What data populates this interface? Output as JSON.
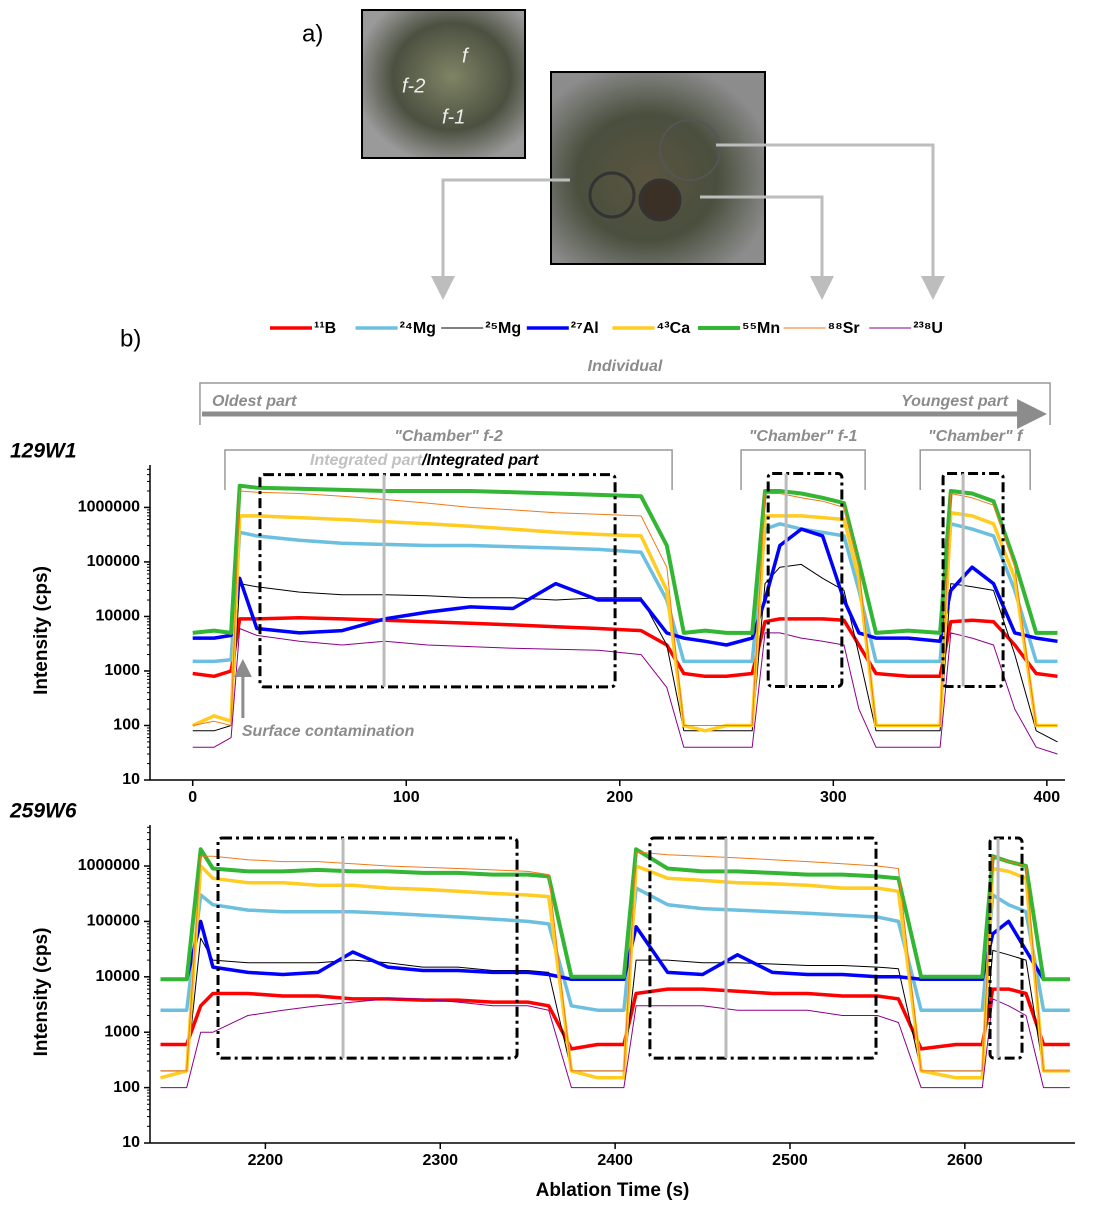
{
  "figure": {
    "panel_a": "a)",
    "panel_b": "b)",
    "photo_labels": [
      "f",
      "f-2",
      "f-1"
    ]
  },
  "chart_data": [
    {
      "type": "line",
      "label": "129W1",
      "ylabel": "Intensity (cps)",
      "log_y": true,
      "x": [
        0,
        10,
        18,
        22,
        30,
        50,
        70,
        90,
        110,
        130,
        150,
        170,
        190,
        210,
        222,
        230,
        240,
        250,
        262,
        268,
        275,
        285,
        295,
        305,
        312,
        320,
        335,
        350,
        355,
        365,
        375,
        385,
        395,
        405
      ],
      "xlim": [
        -20,
        408.5
      ],
      "xticks": [
        0,
        100,
        200,
        300,
        400
      ],
      "ylim": [
        10,
        6000000
      ],
      "yticks": [
        10,
        100,
        1000,
        10000,
        100000,
        1000000
      ],
      "series": [
        {
          "name": "¹¹B",
          "color": "#ff0000",
          "line_width": 3.5,
          "values": [
            900,
            800,
            1000,
            9000,
            9000,
            9500,
            9000,
            8500,
            8000,
            7500,
            7000,
            6500,
            6000,
            5500,
            3000,
            900,
            800,
            800,
            900,
            8000,
            9000,
            9000,
            9000,
            8500,
            3000,
            900,
            800,
            800,
            8000,
            8500,
            8000,
            3000,
            900,
            800
          ]
        },
        {
          "name": "²⁴Mg",
          "color": "#6bbfdf",
          "line_width": 3.5,
          "values": [
            1500,
            1500,
            1600,
            350000,
            300000,
            250000,
            220000,
            210000,
            200000,
            200000,
            190000,
            180000,
            170000,
            150000,
            20000,
            1500,
            1500,
            1500,
            1500,
            400000,
            500000,
            400000,
            350000,
            300000,
            30000,
            1500,
            1500,
            1500,
            500000,
            400000,
            300000,
            30000,
            1500,
            1500
          ]
        },
        {
          "name": "²⁵Mg",
          "color": "#000000",
          "line_width": 1,
          "values": [
            80,
            80,
            100,
            40000,
            35000,
            28000,
            25000,
            25000,
            24000,
            22000,
            22000,
            20000,
            22000,
            22000,
            3000,
            80,
            80,
            80,
            80,
            40000,
            80000,
            90000,
            50000,
            30000,
            2000,
            80,
            80,
            80,
            40000,
            35000,
            30000,
            2000,
            80,
            50
          ]
        },
        {
          "name": "²⁷Al",
          "color": "#0000ff",
          "line_width": 3.5,
          "values": [
            4000,
            4000,
            4500,
            50000,
            6000,
            5000,
            5500,
            9000,
            12000,
            15000,
            14000,
            40000,
            20000,
            20000,
            5000,
            4000,
            3500,
            3000,
            4000,
            20000,
            200000,
            400000,
            300000,
            20000,
            5000,
            4000,
            4000,
            3500,
            30000,
            80000,
            40000,
            5000,
            4000,
            3500
          ]
        },
        {
          "name": "⁴³Ca",
          "color": "#ffcc22",
          "line_width": 3.5,
          "values": [
            100,
            150,
            120,
            700000,
            700000,
            650000,
            600000,
            550000,
            500000,
            450000,
            400000,
            350000,
            320000,
            300000,
            30000,
            100,
            80,
            100,
            100,
            700000,
            700000,
            700000,
            650000,
            600000,
            50000,
            100,
            100,
            100,
            800000,
            700000,
            500000,
            50000,
            100,
            100
          ]
        },
        {
          "name": "⁵⁵Mn",
          "color": "#33b633",
          "line_width": 4,
          "values": [
            5000,
            5500,
            5000,
            2500000,
            2300000,
            2200000,
            2100000,
            2000000,
            2000000,
            2000000,
            1900000,
            1800000,
            1700000,
            1600000,
            200000,
            5000,
            5500,
            5000,
            5000,
            2000000,
            2000000,
            1800000,
            1500000,
            1200000,
            100000,
            5000,
            5500,
            5000,
            2000000,
            1800000,
            1300000,
            100000,
            5000,
            5000
          ]
        },
        {
          "name": "⁸⁸Sr",
          "color": "#f07a18",
          "line_width": 1,
          "values": [
            100,
            120,
            100,
            2000000,
            1900000,
            1800000,
            1600000,
            1400000,
            1200000,
            1000000,
            900000,
            800000,
            750000,
            700000,
            80000,
            100,
            100,
            100,
            100,
            1800000,
            1800000,
            1500000,
            1300000,
            1000000,
            80000,
            100,
            100,
            100,
            1800000,
            1500000,
            1100000,
            80000,
            100,
            100
          ]
        },
        {
          "name": "²³⁸U",
          "color": "#8b008b",
          "line_width": 1,
          "values": [
            40,
            40,
            60,
            6000,
            4500,
            3500,
            3000,
            3500,
            3000,
            2800,
            2600,
            2500,
            2400,
            2000,
            500,
            40,
            40,
            40,
            40,
            5000,
            5000,
            4000,
            3500,
            3000,
            200,
            40,
            40,
            40,
            5000,
            4000,
            3000,
            200,
            40,
            30
          ]
        }
      ],
      "windows": [
        {
          "x": [
            31.5,
            197.8
          ],
          "y": [
            510,
            4000000
          ],
          "marker": 89.6
        },
        {
          "x": [
            269.5,
            304
          ],
          "y": [
            520,
            4200000
          ],
          "marker": 277.9
        },
        {
          "x": [
            351.4,
            379.5
          ],
          "y": [
            520,
            4200000
          ],
          "marker": 360.8
        }
      ],
      "span": {
        "label": "Individual",
        "x": [
          3.4,
          401.5
        ],
        "start": "Oldest part",
        "end": "Youngest part"
      },
      "regions": [
        {
          "label": "\"Chamber\" f-2",
          "x": [
            15.1,
            224.5
          ]
        },
        {
          "label": "\"Chamber\" f-1",
          "x": [
            256.8,
            314.9
          ]
        },
        {
          "label": "\"Chamber\" f",
          "x": [
            340.7,
            392.2
          ]
        }
      ],
      "integrated_label": [
        "Integrated part",
        "/Integrated part"
      ],
      "callout": {
        "label": "Surface contamination",
        "x": 23.5
      }
    },
    {
      "type": "line",
      "label": "259W6",
      "ylabel": "Intensity (cps)",
      "xlabel": "Ablation Time (s)",
      "log_y": true,
      "x": [
        2140,
        2155,
        2163,
        2170,
        2190,
        2210,
        2230,
        2250,
        2270,
        2290,
        2310,
        2330,
        2350,
        2362,
        2375,
        2390,
        2405,
        2412,
        2430,
        2450,
        2470,
        2490,
        2510,
        2530,
        2550,
        2562,
        2575,
        2595,
        2610,
        2616,
        2625,
        2635,
        2645,
        2660
      ],
      "xlim": [
        2134,
        2663
      ],
      "xticks": [
        2200,
        2300,
        2400,
        2500,
        2600
      ],
      "ylim": [
        10,
        5500000
      ],
      "yticks": [
        10,
        100,
        1000,
        10000,
        100000,
        1000000
      ],
      "series": [
        {
          "color": "#ff0000",
          "line_width": 3.5,
          "values": [
            600,
            600,
            3000,
            5000,
            5000,
            4500,
            4500,
            4000,
            4000,
            3800,
            3800,
            3500,
            3500,
            3000,
            500,
            600,
            600,
            5000,
            6000,
            6000,
            5500,
            5000,
            5000,
            4500,
            4500,
            4000,
            500,
            600,
            600,
            6000,
            6000,
            5000,
            600,
            600
          ]
        },
        {
          "color": "#6bbfdf",
          "line_width": 3.5,
          "values": [
            2500,
            2500,
            300000,
            200000,
            160000,
            150000,
            150000,
            150000,
            140000,
            130000,
            120000,
            110000,
            100000,
            90000,
            3000,
            2500,
            2500,
            400000,
            200000,
            170000,
            160000,
            150000,
            140000,
            130000,
            120000,
            100000,
            2500,
            2500,
            2500,
            300000,
            200000,
            150000,
            2500,
            2500
          ]
        },
        {
          "color": "#000000",
          "line_width": 1,
          "values": [
            200,
            200,
            50000,
            20000,
            18000,
            18000,
            18000,
            20000,
            18000,
            15000,
            15000,
            13000,
            13000,
            12000,
            200,
            200,
            200,
            20000,
            20000,
            18000,
            18000,
            17000,
            16000,
            16000,
            15000,
            14000,
            200,
            200,
            200,
            30000,
            25000,
            20000,
            200,
            200
          ]
        },
        {
          "color": "#0000ff",
          "line_width": 3.5,
          "values": [
            9000,
            9000,
            100000,
            15000,
            12000,
            11000,
            12000,
            28000,
            15000,
            13000,
            13000,
            12000,
            12000,
            11000,
            9000,
            9000,
            9000,
            80000,
            12000,
            11000,
            25000,
            12000,
            11000,
            11000,
            10000,
            10000,
            9000,
            9000,
            9000,
            60000,
            100000,
            30000,
            9000,
            9000
          ]
        },
        {
          "color": "#ffcc22",
          "line_width": 3.5,
          "values": [
            150,
            200,
            1000000,
            600000,
            500000,
            500000,
            450000,
            450000,
            400000,
            380000,
            350000,
            320000,
            300000,
            280000,
            200,
            150,
            150,
            1000000,
            600000,
            550000,
            500000,
            480000,
            450000,
            400000,
            400000,
            350000,
            200,
            150,
            150,
            900000,
            800000,
            600000,
            200,
            200
          ]
        },
        {
          "color": "#33b633",
          "line_width": 4,
          "values": [
            9000,
            9000,
            2000000,
            900000,
            800000,
            800000,
            850000,
            800000,
            800000,
            750000,
            750000,
            700000,
            700000,
            650000,
            10000,
            10000,
            10000,
            2000000,
            900000,
            800000,
            800000,
            750000,
            700000,
            700000,
            650000,
            600000,
            10000,
            10000,
            10000,
            1500000,
            1200000,
            1000000,
            9000,
            9000
          ]
        },
        {
          "color": "#f07a18",
          "line_width": 1,
          "values": [
            200,
            200,
            1500000,
            1500000,
            1300000,
            1200000,
            1200000,
            1100000,
            1000000,
            950000,
            900000,
            850000,
            800000,
            700000,
            200,
            200,
            200,
            1800000,
            1600000,
            1500000,
            1400000,
            1300000,
            1200000,
            1100000,
            1000000,
            900000,
            200,
            200,
            200,
            1500000,
            1200000,
            1000000,
            200,
            200
          ]
        },
        {
          "color": "#8b008b",
          "line_width": 1,
          "values": [
            100,
            100,
            1000,
            1000,
            2000,
            2500,
            3000,
            3500,
            4000,
            4000,
            3500,
            3000,
            3000,
            2500,
            100,
            100,
            100,
            3000,
            3000,
            3000,
            2500,
            2500,
            2500,
            2000,
            2000,
            1500,
            100,
            100,
            100,
            4000,
            3000,
            2000,
            100,
            100
          ]
        }
      ],
      "windows": [
        {
          "x": [
            2172.9,
            2343.9
          ],
          "y": [
            340,
            3200000
          ],
          "marker": 2244.4
        },
        {
          "x": [
            2419.9,
            2549.2
          ],
          "y": [
            340,
            3200000
          ],
          "marker": 2463.4
        },
        {
          "x": [
            2614.4,
            2632.7
          ],
          "y": [
            340,
            3200000
          ],
          "marker": 2619
        }
      ]
    }
  ]
}
